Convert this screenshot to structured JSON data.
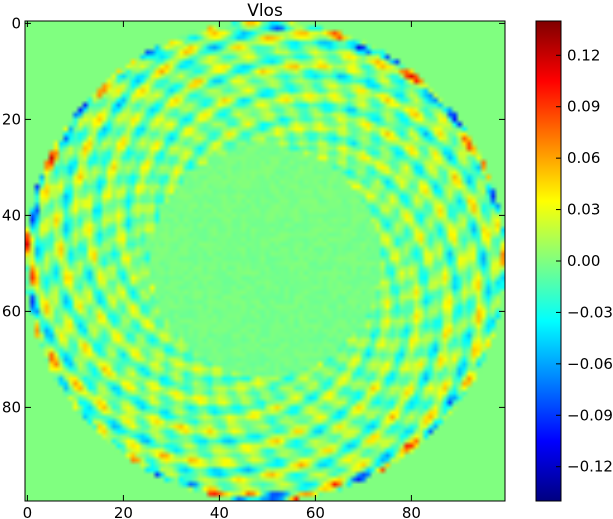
{
  "chart_data": {
    "type": "heatmap",
    "title": "Vlos",
    "xlabel": "",
    "ylabel": "",
    "grid_size": [
      100,
      100
    ],
    "xlim": [
      0,
      99
    ],
    "ylim": [
      99,
      0
    ],
    "x_ticks": [
      0,
      20,
      40,
      60,
      80
    ],
    "x_tick_labels": [
      "0",
      "20",
      "40",
      "60",
      "80"
    ],
    "y_ticks": [
      0,
      20,
      40,
      60,
      80
    ],
    "y_tick_labels": [
      "0",
      "20",
      "40",
      "60",
      "80"
    ],
    "colormap": "jet",
    "background_value": 0.0,
    "disk": {
      "center": [
        49.5,
        49.5
      ],
      "outer_radius": 50,
      "inner_radius": 24,
      "ring_amplitude": 0.06,
      "inner_amplitude": 0.004
    },
    "colorbar": {
      "min": -0.14,
      "max": 0.14,
      "ticks": [
        0.12,
        0.09,
        0.06,
        0.03,
        0.0,
        -0.03,
        -0.06,
        -0.09,
        -0.12
      ],
      "tick_labels": [
        "0.12",
        "0.09",
        "0.06",
        "0.03",
        "0.00",
        "−0.03",
        "−0.06",
        "−0.09",
        "−0.12"
      ],
      "position": "right"
    },
    "grid": false
  }
}
